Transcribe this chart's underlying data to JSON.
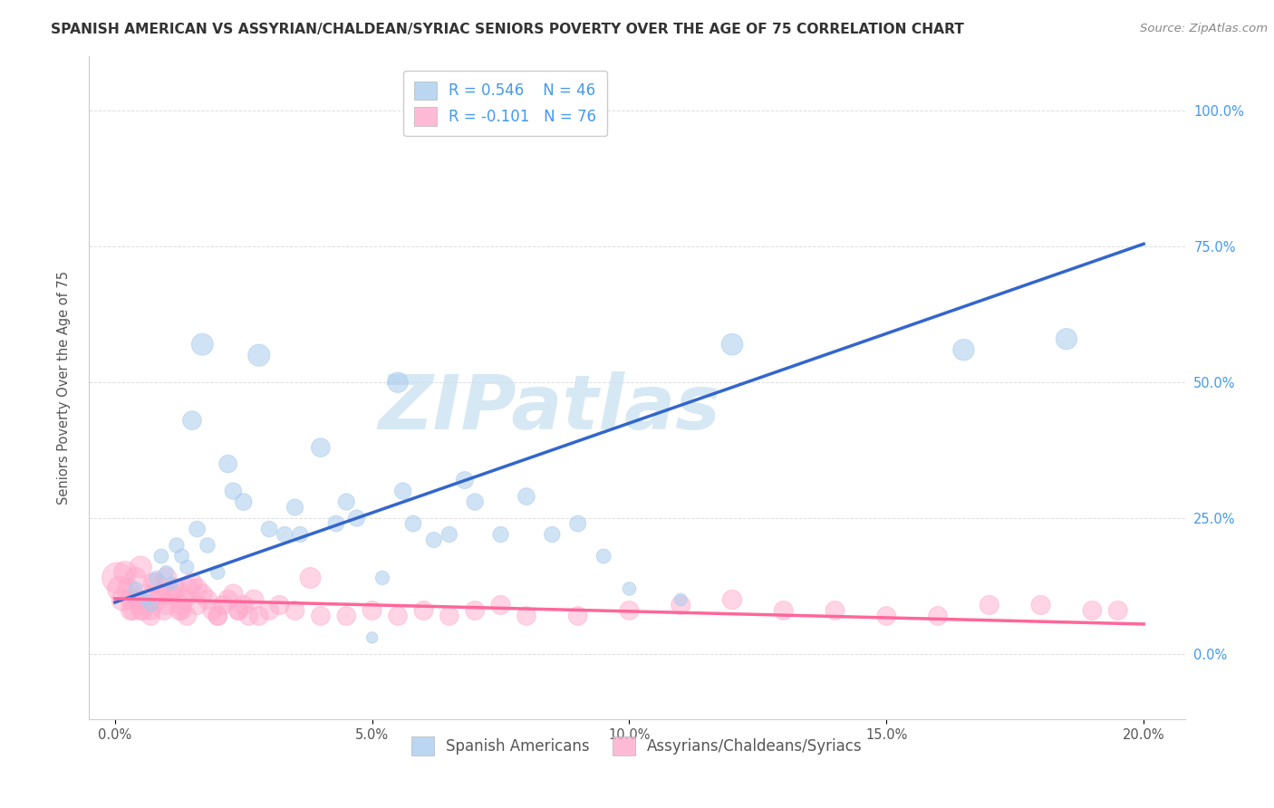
{
  "title": "SPANISH AMERICAN VS ASSYRIAN/CHALDEAN/SYRIAC SENIORS POVERTY OVER THE AGE OF 75 CORRELATION CHART",
  "source": "Source: ZipAtlas.com",
  "ylabel": "Seniors Poverty Over the Age of 75",
  "blue_R": "0.546",
  "blue_N": "46",
  "pink_R": "-0.101",
  "pink_N": "76",
  "blue_color": "#aaccee",
  "pink_color": "#ffaacc",
  "blue_line_color": "#3366cc",
  "pink_line_color": "#ff6699",
  "watermark_text": "ZIPatlas",
  "legend_label_blue": "Spanish Americans",
  "legend_label_pink": "Assyrians/Chaldeans/Syriacs",
  "xtick_labels": [
    "0.0%",
    "5.0%",
    "10.0%",
    "15.0%",
    "20.0%"
  ],
  "xtick_vals": [
    0.0,
    5.0,
    10.0,
    15.0,
    20.0
  ],
  "ytick_labels": [
    "0.0%",
    "25.0%",
    "50.0%",
    "75.0%",
    "100.0%"
  ],
  "ytick_vals": [
    0.0,
    25.0,
    50.0,
    75.0,
    100.0
  ],
  "blue_x": [
    0.4,
    0.6,
    0.7,
    0.8,
    0.9,
    1.0,
    1.1,
    1.2,
    1.4,
    1.6,
    1.8,
    2.0,
    2.2,
    2.5,
    2.8,
    3.0,
    3.3,
    3.6,
    4.0,
    4.3,
    4.7,
    5.0,
    5.2,
    5.5,
    5.8,
    6.2,
    6.5,
    7.0,
    7.5,
    8.0,
    8.5,
    9.0,
    10.0,
    11.0,
    12.0,
    16.5,
    18.5,
    1.3,
    1.5,
    1.7,
    2.3,
    3.5,
    4.5,
    5.6,
    6.8,
    9.5
  ],
  "blue_y": [
    12.0,
    10.0,
    9.0,
    14.0,
    18.0,
    15.0,
    13.0,
    20.0,
    16.0,
    23.0,
    20.0,
    15.0,
    35.0,
    28.0,
    55.0,
    23.0,
    22.0,
    22.0,
    38.0,
    24.0,
    25.0,
    3.0,
    14.0,
    50.0,
    24.0,
    21.0,
    22.0,
    28.0,
    22.0,
    29.0,
    22.0,
    24.0,
    12.0,
    10.0,
    57.0,
    56.0,
    58.0,
    18.0,
    43.0,
    57.0,
    30.0,
    27.0,
    28.0,
    30.0,
    32.0,
    18.0
  ],
  "blue_s": [
    120,
    100,
    110,
    120,
    130,
    120,
    110,
    140,
    120,
    160,
    140,
    120,
    200,
    180,
    300,
    160,
    155,
    155,
    220,
    165,
    170,
    80,
    120,
    260,
    165,
    150,
    155,
    175,
    155,
    180,
    155,
    165,
    110,
    100,
    290,
    285,
    280,
    130,
    220,
    295,
    175,
    170,
    170,
    175,
    185,
    130
  ],
  "pink_x": [
    0.05,
    0.1,
    0.15,
    0.2,
    0.25,
    0.3,
    0.35,
    0.4,
    0.45,
    0.5,
    0.55,
    0.6,
    0.65,
    0.7,
    0.75,
    0.8,
    0.85,
    0.9,
    0.95,
    1.0,
    1.05,
    1.1,
    1.15,
    1.2,
    1.25,
    1.3,
    1.35,
    1.4,
    1.45,
    1.5,
    1.6,
    1.7,
    1.8,
    1.9,
    2.0,
    2.1,
    2.2,
    2.3,
    2.4,
    2.5,
    2.6,
    2.7,
    2.8,
    3.0,
    3.2,
    3.5,
    3.8,
    4.0,
    4.5,
    5.0,
    5.5,
    6.0,
    6.5,
    7.0,
    7.5,
    8.0,
    9.0,
    10.0,
    11.0,
    12.0,
    13.0,
    14.0,
    15.0,
    16.0,
    17.0,
    18.0,
    19.0,
    19.5,
    0.3,
    0.5,
    0.7,
    1.0,
    1.3,
    1.6,
    2.0,
    2.4
  ],
  "pink_y": [
    14.0,
    12.0,
    10.0,
    15.0,
    12.0,
    10.0,
    8.0,
    14.0,
    10.0,
    16.0,
    8.0,
    9.0,
    11.0,
    7.0,
    13.0,
    13.0,
    10.0,
    11.0,
    8.0,
    14.0,
    11.0,
    11.0,
    12.0,
    12.0,
    8.0,
    9.0,
    10.0,
    7.0,
    12.0,
    13.0,
    12.0,
    11.0,
    10.0,
    8.0,
    7.0,
    9.0,
    10.0,
    11.0,
    8.0,
    9.0,
    7.0,
    10.0,
    7.0,
    8.0,
    9.0,
    8.0,
    14.0,
    7.0,
    7.0,
    8.0,
    7.0,
    8.0,
    7.0,
    8.0,
    9.0,
    7.0,
    7.0,
    8.0,
    9.0,
    10.0,
    8.0,
    8.0,
    7.0,
    7.0,
    9.0,
    9.0,
    8.0,
    8.0,
    8.0,
    8.0,
    8.0,
    9.0,
    8.0,
    9.0,
    7.0,
    8.0
  ],
  "pink_s": [
    600,
    400,
    300,
    320,
    280,
    250,
    230,
    280,
    260,
    300,
    240,
    240,
    260,
    220,
    260,
    260,
    240,
    250,
    230,
    270,
    250,
    250,
    255,
    255,
    230,
    240,
    245,
    220,
    255,
    260,
    255,
    250,
    240,
    230,
    220,
    225,
    235,
    245,
    225,
    235,
    220,
    240,
    220,
    225,
    230,
    225,
    270,
    220,
    220,
    225,
    220,
    225,
    220,
    225,
    230,
    220,
    220,
    225,
    230,
    235,
    225,
    225,
    220,
    220,
    230,
    230,
    225,
    225,
    225,
    225,
    225,
    230,
    225,
    230,
    220,
    225
  ],
  "blue_line_x": [
    0.0,
    20.0
  ],
  "blue_line_y": [
    9.5,
    75.5
  ],
  "pink_line_x": [
    0.0,
    20.0
  ],
  "pink_line_y": [
    10.2,
    5.5
  ],
  "xlim": [
    -0.5,
    20.8
  ],
  "ylim": [
    -12,
    110
  ],
  "title_fontsize": 11.2,
  "axis_tick_fontsize": 10.5,
  "watermark_fontsize": 60,
  "watermark_color": "#c5dff0",
  "watermark_alpha": 0.7,
  "grid_color": "#dddddd",
  "right_tick_color": "#4499ee",
  "source_text_color": "#888888",
  "ylabel_color": "#555555",
  "legend_text_color": "#4499ee",
  "bottom_legend_text_color": "#555555"
}
